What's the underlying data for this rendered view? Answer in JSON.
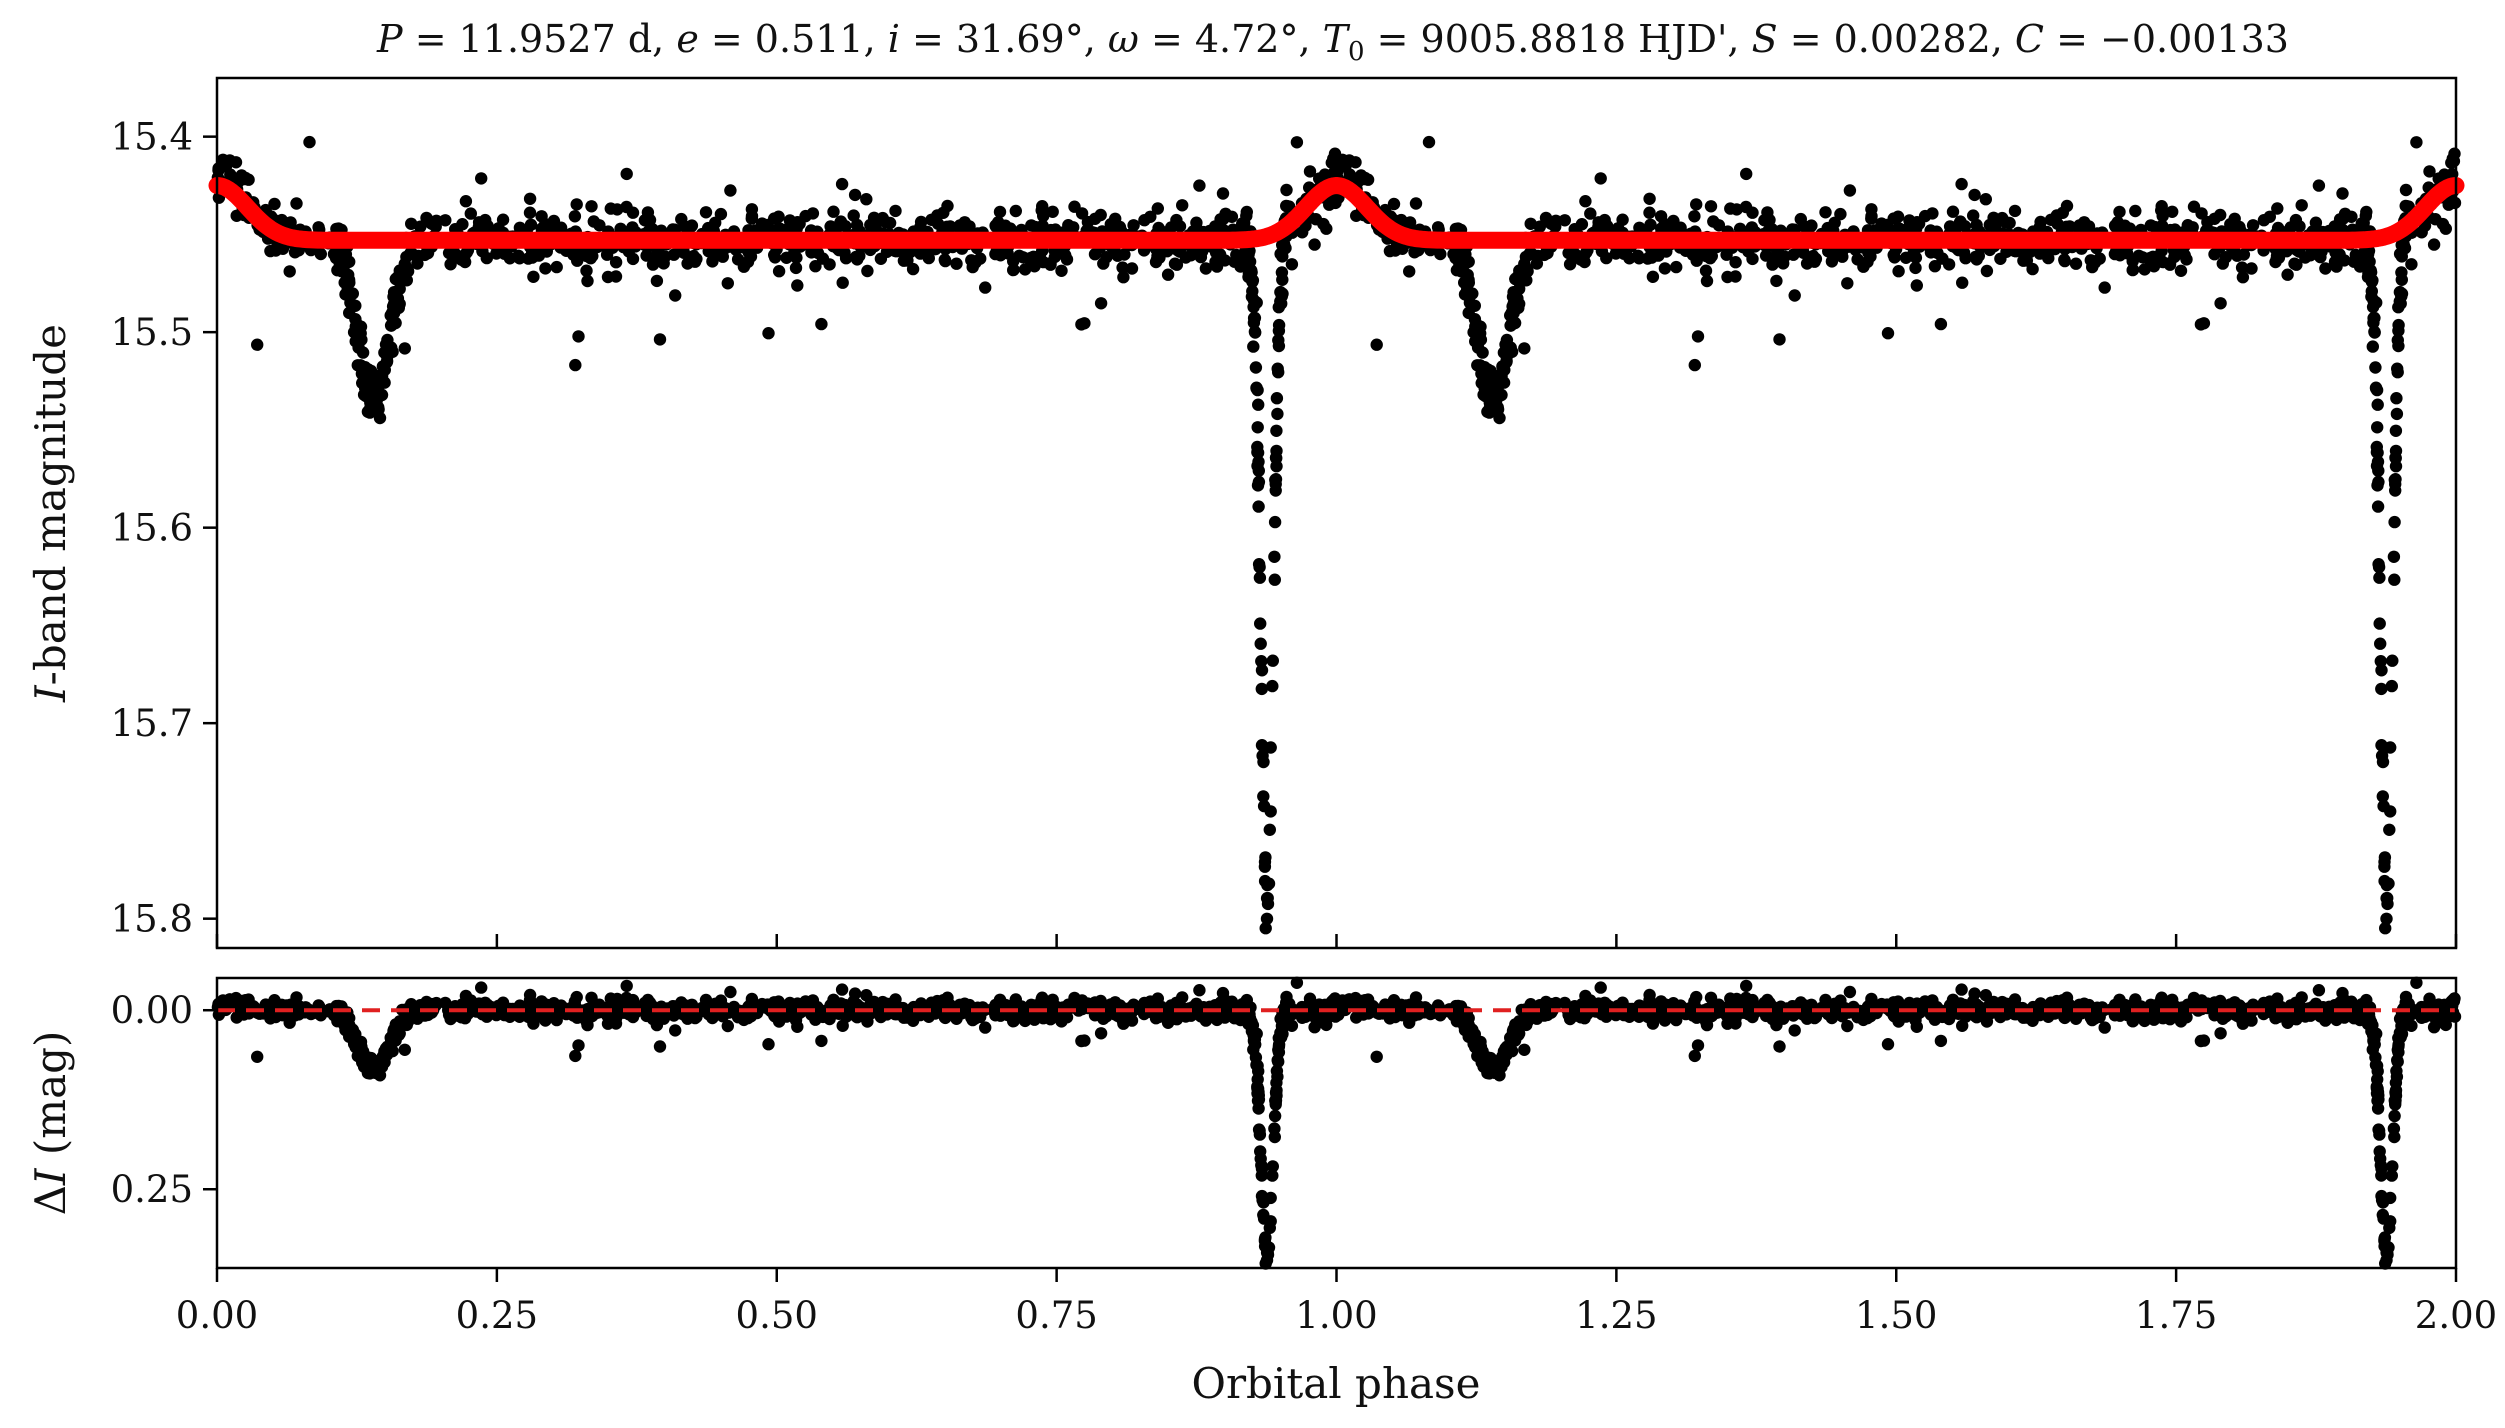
{
  "colors": {
    "points": "#000000",
    "model": "#ff0000",
    "residual_zero_line": "#e02020",
    "background": "#ffffff"
  },
  "chart_data": [
    {
      "type": "scatter",
      "panel": "top",
      "title": "P = 11.9527 d, e = 0.511, i = 31.69°, ω = 4.72°, T₀ = 9005.8818 HJD', S = 0.00282, C = −0.00133",
      "xlabel": "",
      "ylabel": "I-band magnitude",
      "xlim": [
        0.0,
        2.0
      ],
      "ylim": [
        15.815,
        15.37
      ],
      "y_inverted": true,
      "grid": false,
      "xticks": [
        0.0,
        0.25,
        0.5,
        0.75,
        1.0,
        1.25,
        1.5,
        1.75,
        2.0
      ],
      "yticks": [
        15.4,
        15.5,
        15.6,
        15.7,
        15.8
      ],
      "ytick_labels": [
        "15.4",
        "15.5",
        "15.6",
        "15.7",
        "15.8"
      ],
      "baseline_magnitude": 15.452,
      "scatter_sigma": 0.007,
      "series": [
        {
          "kind": "observed_points",
          "eclipses": [
            {
              "phase": 0.14,
              "depth": 0.08,
              "width": 0.015
            },
            {
              "phase": 0.938,
              "depth": 0.34,
              "width": 0.0055
            }
          ],
          "sample_points": [
            {
              "x": 0.005,
              "y": 15.405
            },
            {
              "x": 0.028,
              "y": 15.381
            },
            {
              "x": 0.105,
              "y": 15.4
            },
            {
              "x": 0.135,
              "y": 15.53
            },
            {
              "x": 0.145,
              "y": 15.548
            },
            {
              "x": 0.928,
              "y": 15.54
            },
            {
              "x": 0.933,
              "y": 15.63
            },
            {
              "x": 0.937,
              "y": 15.74
            },
            {
              "x": 0.94,
              "y": 15.8
            },
            {
              "x": 0.945,
              "y": 15.7
            },
            {
              "x": 0.95,
              "y": 15.56
            },
            {
              "x": 0.955,
              "y": 15.5
            },
            {
              "x": 0.97,
              "y": 15.39
            },
            {
              "x": 1.03,
              "y": 15.38
            }
          ]
        },
        {
          "kind": "model_curve",
          "baseline": 15.453,
          "peaks": [
            {
              "phase": 0.0,
              "height": 0.028,
              "width": 0.027
            },
            {
              "phase": 1.0,
              "height": 0.028,
              "width": 0.027
            },
            {
              "phase": 2.0,
              "height": 0.028,
              "width": 0.027
            }
          ]
        }
      ]
    },
    {
      "type": "scatter",
      "panel": "bottom",
      "xlabel": "Orbital phase",
      "ylabel": "ΔI (mag)",
      "xlim": [
        0.0,
        2.0
      ],
      "ylim": [
        0.36,
        -0.045
      ],
      "y_inverted": true,
      "grid": false,
      "xticks": [
        0.0,
        0.25,
        0.5,
        0.75,
        1.0,
        1.25,
        1.5,
        1.75,
        2.0
      ],
      "xtick_labels": [
        "0.00",
        "0.25",
        "0.50",
        "0.75",
        "1.00",
        "1.25",
        "1.50",
        "1.75",
        "2.00"
      ],
      "yticks": [
        0.0,
        0.25
      ],
      "ytick_labels": [
        "0.00",
        "0.25"
      ],
      "reference_line": {
        "y": 0.0,
        "style": "dashed"
      },
      "series": [
        {
          "kind": "residual_points",
          "eclipses": [
            {
              "phase": 0.14,
              "depth": 0.08,
              "width": 0.015
            },
            {
              "phase": 0.938,
              "depth": 0.34,
              "width": 0.0055
            }
          ]
        }
      ]
    }
  ]
}
